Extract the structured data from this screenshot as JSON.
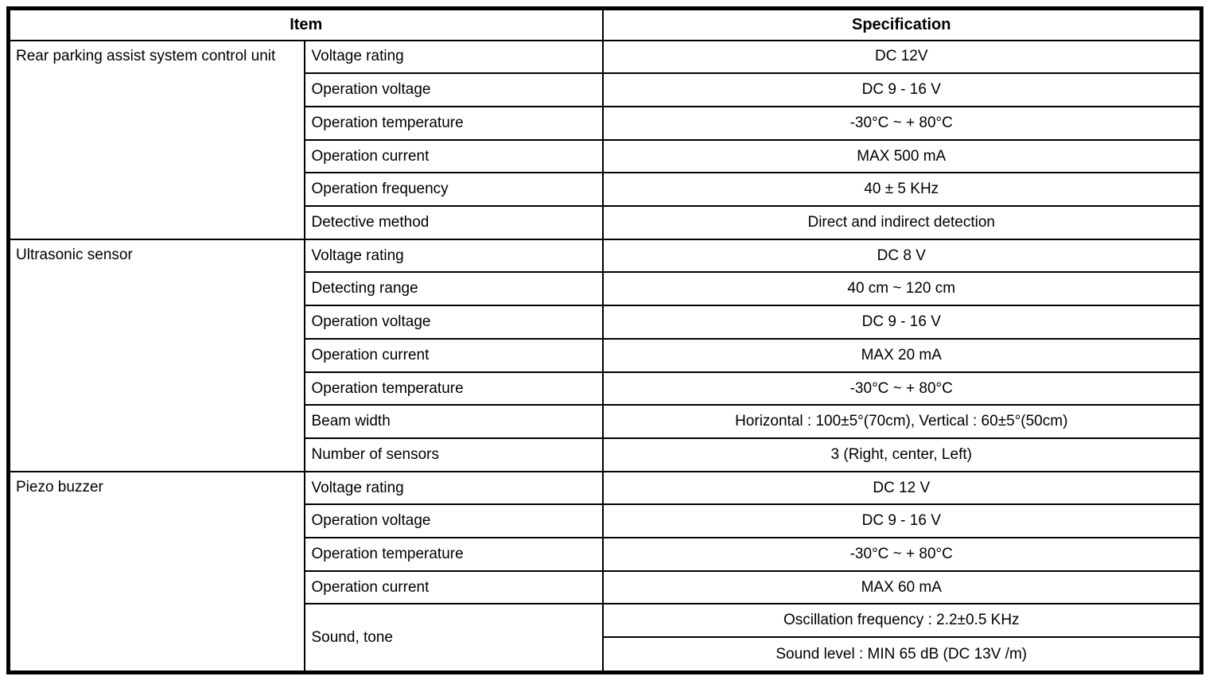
{
  "table": {
    "headers": {
      "item": "Item",
      "specification": "Specification"
    },
    "groups": [
      {
        "item": "Rear parking assist system control unit",
        "rows": [
          {
            "label": "Voltage rating",
            "spec": "DC 12V"
          },
          {
            "label": "Operation voltage",
            "spec": "DC 9 - 16 V"
          },
          {
            "label": "Operation temperature",
            "spec": "-30°C ~ + 80°C"
          },
          {
            "label": "Operation current",
            "spec": "MAX 500 mA"
          },
          {
            "label": "Operation frequency",
            "spec": "40 ± 5 KHz"
          },
          {
            "label": "Detective method",
            "spec": "Direct and indirect detection"
          }
        ]
      },
      {
        "item": "Ultrasonic sensor",
        "rows": [
          {
            "label": "Voltage rating",
            "spec": "DC 8 V"
          },
          {
            "label": "Detecting range",
            "spec": "40 cm ~ 120 cm"
          },
          {
            "label": "Operation voltage",
            "spec": "DC 9 - 16 V"
          },
          {
            "label": "Operation current",
            "spec": "MAX 20 mA"
          },
          {
            "label": "Operation temperature",
            "spec": "-30°C ~ + 80°C"
          },
          {
            "label": "Beam width",
            "spec": "Horizontal : 100±5°(70cm), Vertical : 60±5°(50cm)"
          },
          {
            "label": "Number of sensors",
            "spec": "3 (Right, center, Left)"
          }
        ]
      },
      {
        "item": "Piezo buzzer",
        "rows": [
          {
            "label": "Voltage rating",
            "spec": "DC 12 V"
          },
          {
            "label": "Operation voltage",
            "spec": "DC 9 - 16 V"
          },
          {
            "label": "Operation temperature",
            "spec": "-30°C ~ + 80°C"
          },
          {
            "label": "Operation current",
            "spec": "MAX 60 mA"
          },
          {
            "label": "Sound, tone",
            "specs": [
              "Oscillation frequency : 2.2±0.5 KHz",
              "Sound level : MIN 65 dB (DC 13V /m)"
            ]
          }
        ]
      }
    ],
    "colors": {
      "border": "#000000",
      "text": "#000000",
      "background": "#ffffff"
    }
  }
}
